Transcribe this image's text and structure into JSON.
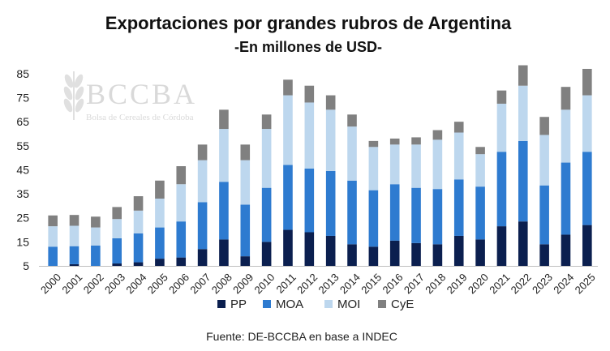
{
  "chart_data": {
    "type": "bar",
    "stacked": true,
    "title": "Exportaciones por grandes rubros de Argentina",
    "subtitle": "-En millones de USD-",
    "categories": [
      "2000",
      "2001",
      "2002",
      "2003",
      "2004",
      "2005",
      "2006",
      "2007",
      "2008",
      "2009",
      "2010",
      "2011",
      "2012",
      "2013",
      "2014",
      "2015",
      "2016",
      "2017",
      "2018",
      "2019",
      "2020",
      "2021",
      "2022",
      "2023",
      "2024",
      "2025"
    ],
    "series": [
      {
        "name": "PP",
        "color": "#0b1f4f",
        "values": [
          5.0,
          5.7,
          5.0,
          6.0,
          6.5,
          8.0,
          8.5,
          12.0,
          16.0,
          9.0,
          15.0,
          20.0,
          19.0,
          17.5,
          14.0,
          13.0,
          15.5,
          14.5,
          14.0,
          17.5,
          16.0,
          21.5,
          23.5,
          14.0,
          18.0,
          22.0
        ]
      },
      {
        "name": "MOA",
        "color": "#2e7bd0",
        "values": [
          8.0,
          7.5,
          8.5,
          10.5,
          12.0,
          13.0,
          15.0,
          19.5,
          24.0,
          21.5,
          22.5,
          27.0,
          26.5,
          27.0,
          26.5,
          23.5,
          23.5,
          23.0,
          23.0,
          23.5,
          22.0,
          31.0,
          33.5,
          24.5,
          30.0,
          30.5
        ]
      },
      {
        "name": "MOI",
        "color": "#bdd7ee",
        "values": [
          8.5,
          8.5,
          7.5,
          8.0,
          9.5,
          12.0,
          15.5,
          17.5,
          22.0,
          18.5,
          24.5,
          29.0,
          27.5,
          25.5,
          22.5,
          18.0,
          16.5,
          18.0,
          20.5,
          19.5,
          13.5,
          20.0,
          23.0,
          21.0,
          22.0,
          23.5
        ]
      },
      {
        "name": "CyE",
        "color": "#808080",
        "values": [
          4.5,
          4.5,
          4.5,
          5.0,
          6.0,
          7.5,
          7.5,
          6.5,
          8.0,
          6.5,
          6.0,
          6.5,
          7.0,
          6.0,
          5.0,
          2.5,
          2.5,
          3.0,
          4.0,
          4.5,
          3.0,
          5.5,
          8.5,
          7.5,
          9.5,
          11.0
        ]
      }
    ],
    "yticks": [
      5,
      15,
      25,
      35,
      45,
      55,
      65,
      75,
      85
    ],
    "ylim": [
      5,
      88
    ],
    "xlabel": "",
    "ylabel": "",
    "grid": false,
    "legend_position": "bottom"
  },
  "watermark": {
    "name": "BCCBA",
    "tagline": "Bolsa de Cereales de Córdoba"
  },
  "source": "Fuente: DE-BCCBA en base a INDEC"
}
